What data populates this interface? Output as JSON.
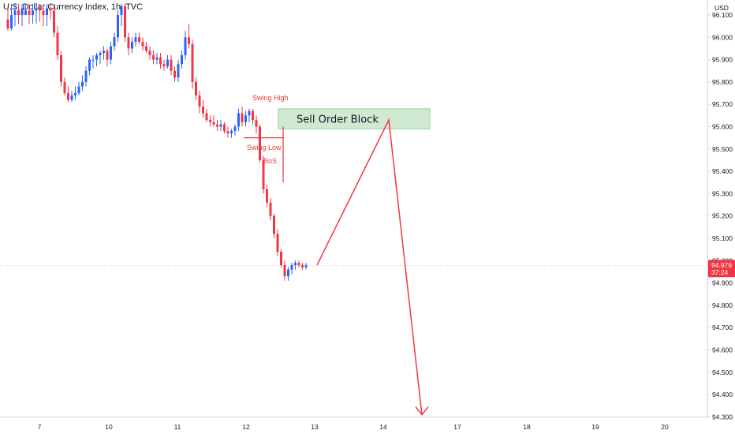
{
  "header": {
    "title": "U.S. Dollar Currency Index, 1h, TVC"
  },
  "axis": {
    "currency_label": "USD"
  },
  "price_tag": {
    "price": "94.979",
    "countdown": "37:24"
  },
  "annotations": {
    "swing_high": "Swing High",
    "swing_low": "Swing Low",
    "bos": "BoS",
    "order_block": "Sell Order Block"
  },
  "colors": {
    "up": "#2962ff",
    "down": "#f23645",
    "arrow": "#f23645",
    "order_block_fill": "#c8e6c9",
    "order_block_border": "#81c784",
    "label_red": "#e53935"
  },
  "chart_data": {
    "type": "candlestick",
    "x_ticks": [
      "7",
      "10",
      "11",
      "12",
      "13",
      "14",
      "17",
      "18",
      "19",
      "20"
    ],
    "y_ticks": [
      "96.100",
      "96.000",
      "95.900",
      "95.800",
      "95.700",
      "95.600",
      "95.500",
      "95.400",
      "95.300",
      "95.200",
      "95.100",
      "95.000",
      "94.900",
      "94.800",
      "94.700",
      "94.600",
      "94.500",
      "94.400",
      "94.300"
    ],
    "ylim": [
      94.27,
      96.15
    ],
    "current_price": 94.979,
    "grid": false,
    "order_block": {
      "low": 95.59,
      "high": 95.68
    },
    "projected_path": [
      {
        "x": "13",
        "y": 94.98
      },
      {
        "x": "14",
        "y": 95.63
      },
      {
        "x": "15",
        "y": 94.31
      }
    ],
    "candles": [
      [
        96.08,
        96.14,
        96.03,
        96.04
      ],
      [
        96.04,
        96.15,
        96.03,
        96.1
      ],
      [
        96.1,
        96.15,
        96.05,
        96.12
      ],
      [
        96.12,
        96.15,
        96.06,
        96.1
      ],
      [
        96.1,
        96.15,
        96.05,
        96.13
      ],
      [
        96.1,
        96.15,
        96.1,
        96.12
      ],
      [
        96.12,
        96.15,
        96.06,
        96.1
      ],
      [
        96.1,
        96.15,
        96.06,
        96.12
      ],
      [
        96.12,
        96.15,
        96.06,
        96.13
      ],
      [
        96.13,
        96.15,
        96.07,
        96.12
      ],
      [
        96.12,
        96.15,
        96.05,
        96.1
      ],
      [
        96.1,
        96.15,
        96.05,
        96.13
      ],
      [
        96.13,
        96.15,
        96.08,
        96.12
      ],
      [
        96.12,
        96.15,
        96.0,
        96.02
      ],
      [
        96.02,
        96.05,
        95.9,
        95.92
      ],
      [
        95.92,
        95.94,
        95.78,
        95.8
      ],
      [
        95.8,
        95.82,
        95.74,
        95.75
      ],
      [
        95.75,
        95.78,
        95.71,
        95.72
      ],
      [
        95.72,
        95.76,
        95.71,
        95.74
      ],
      [
        95.74,
        95.78,
        95.72,
        95.75
      ],
      [
        95.75,
        95.8,
        95.74,
        95.78
      ],
      [
        95.78,
        95.83,
        95.76,
        95.8
      ],
      [
        95.8,
        95.87,
        95.78,
        95.85
      ],
      [
        95.85,
        95.91,
        95.83,
        95.9
      ],
      [
        95.9,
        95.92,
        95.86,
        95.9
      ],
      [
        95.9,
        95.93,
        95.87,
        95.92
      ],
      [
        95.92,
        95.94,
        95.88,
        95.93
      ],
      [
        95.93,
        95.96,
        95.9,
        95.94
      ],
      [
        95.94,
        95.95,
        95.87,
        95.9
      ],
      [
        95.9,
        95.98,
        95.88,
        95.96
      ],
      [
        95.96,
        96.02,
        95.94,
        96.0
      ],
      [
        96.0,
        96.12,
        95.98,
        96.1
      ],
      [
        96.1,
        96.15,
        96.05,
        96.14
      ],
      [
        96.14,
        96.15,
        95.98,
        96.0
      ],
      [
        96.0,
        96.02,
        95.92,
        95.95
      ],
      [
        95.95,
        96.0,
        95.93,
        95.98
      ],
      [
        95.98,
        96.02,
        95.96,
        96.0
      ],
      [
        96.0,
        96.02,
        95.97,
        95.98
      ],
      [
        95.98,
        96.0,
        95.94,
        95.96
      ],
      [
        95.96,
        95.98,
        95.93,
        95.94
      ],
      [
        95.94,
        95.96,
        95.9,
        95.92
      ],
      [
        95.92,
        95.94,
        95.88,
        95.9
      ],
      [
        95.9,
        95.93,
        95.88,
        95.91
      ],
      [
        95.91,
        95.93,
        95.86,
        95.88
      ],
      [
        95.88,
        95.9,
        95.85,
        95.87
      ],
      [
        95.87,
        95.92,
        95.86,
        95.9
      ],
      [
        95.9,
        95.92,
        95.83,
        95.85
      ],
      [
        95.85,
        95.87,
        95.8,
        95.82
      ],
      [
        95.82,
        95.9,
        95.8,
        95.88
      ],
      [
        95.88,
        95.94,
        95.86,
        95.92
      ],
      [
        95.92,
        96.03,
        95.9,
        96.0
      ],
      [
        96.0,
        96.06,
        95.95,
        95.97
      ],
      [
        95.97,
        95.99,
        95.77,
        95.8
      ],
      [
        95.8,
        95.82,
        95.72,
        95.74
      ],
      [
        95.74,
        95.76,
        95.66,
        95.69
      ],
      [
        95.69,
        95.72,
        95.64,
        95.66
      ],
      [
        95.66,
        95.68,
        95.62,
        95.63
      ],
      [
        95.63,
        95.65,
        95.6,
        95.62
      ],
      [
        95.62,
        95.65,
        95.6,
        95.61
      ],
      [
        95.61,
        95.63,
        95.58,
        95.6
      ],
      [
        95.6,
        95.63,
        95.58,
        95.61
      ],
      [
        95.61,
        95.62,
        95.57,
        95.58
      ],
      [
        95.58,
        95.6,
        95.55,
        95.57
      ],
      [
        95.57,
        95.59,
        95.55,
        95.58
      ],
      [
        95.58,
        95.61,
        95.56,
        95.6
      ],
      [
        95.6,
        95.68,
        95.58,
        95.66
      ],
      [
        95.66,
        95.69,
        95.6,
        95.62
      ],
      [
        95.62,
        95.67,
        95.6,
        95.65
      ],
      [
        95.65,
        95.68,
        95.62,
        95.67
      ],
      [
        95.67,
        95.68,
        95.61,
        95.63
      ],
      [
        95.63,
        95.65,
        95.57,
        95.6
      ],
      [
        95.6,
        95.61,
        95.44,
        95.45
      ],
      [
        95.45,
        95.47,
        95.3,
        95.32
      ],
      [
        95.32,
        95.34,
        95.24,
        95.26
      ],
      [
        95.26,
        95.28,
        95.18,
        95.2
      ],
      [
        95.2,
        95.21,
        95.1,
        95.12
      ],
      [
        95.12,
        95.14,
        95.02,
        95.04
      ],
      [
        95.04,
        95.05,
        94.97,
        94.98
      ],
      [
        94.98,
        95.0,
        94.91,
        94.93
      ],
      [
        94.93,
        94.97,
        94.91,
        94.96
      ],
      [
        94.96,
        94.99,
        94.94,
        94.98
      ],
      [
        94.98,
        95.0,
        94.96,
        94.99
      ],
      [
        94.99,
        95.0,
        94.97,
        94.98
      ],
      [
        94.98,
        94.99,
        94.96,
        94.97
      ],
      [
        94.97,
        94.99,
        94.96,
        94.98
      ]
    ]
  }
}
